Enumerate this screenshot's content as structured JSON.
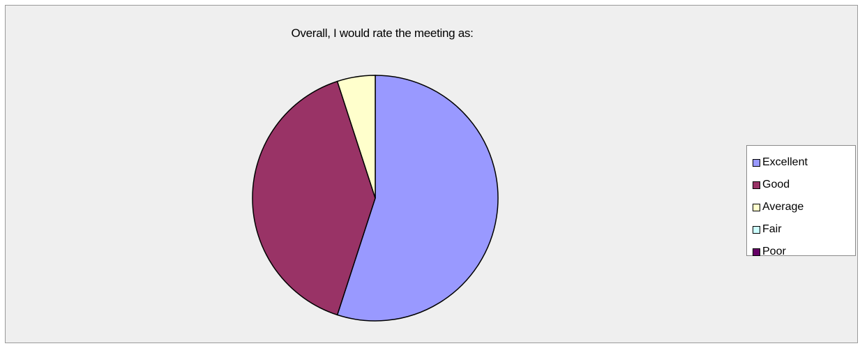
{
  "chart_data": {
    "type": "pie",
    "title": "Overall, I would rate the meeting as:",
    "categories": [
      "Excellent",
      "Good",
      "Average",
      "Fair",
      "Poor"
    ],
    "values": [
      55,
      40,
      5,
      0,
      0
    ],
    "colors": [
      "#9999ff",
      "#993366",
      "#ffffcc",
      "#ccffff",
      "#660066"
    ],
    "legend_position": "right"
  }
}
